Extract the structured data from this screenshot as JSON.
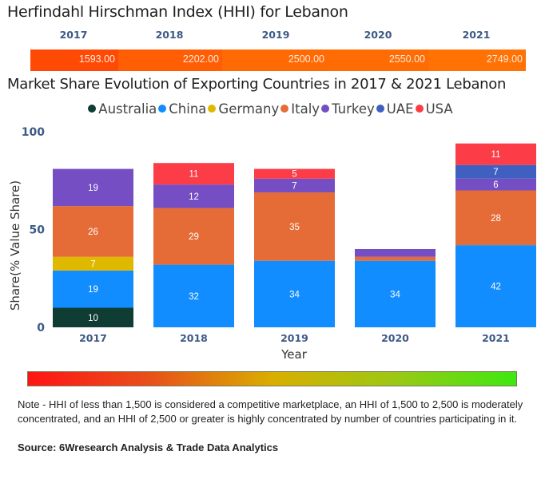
{
  "hhi": {
    "title": "Herfindahl Hirschman Index (HHI) for Lebanon",
    "years": [
      "2017",
      "2018",
      "2019",
      "2020",
      "2021"
    ],
    "values": [
      "1593.00",
      "2202.00",
      "2500.00",
      "2550.00",
      "2749.00"
    ],
    "cell_colors": [
      "#ff4a06",
      "#ff5e05",
      "#ff6a04",
      "#ff6c04",
      "#ff7203"
    ]
  },
  "chart_data": {
    "type": "bar",
    "stacked": true,
    "title": "Market Share Evolution of Exporting Countries in 2017 & 2021 Lebanon",
    "xlabel": "Year",
    "ylabel": "Share(% Value Share)",
    "ylim": [
      0,
      100
    ],
    "yticks": [
      "0",
      "50",
      "100"
    ],
    "categories": [
      "2017",
      "2018",
      "2019",
      "2020",
      "2021"
    ],
    "legend_position": "top-center",
    "series": [
      {
        "name": "Australia",
        "color": "#0f3d33",
        "values": [
          10,
          0,
          0,
          0,
          0
        ],
        "labels": [
          "10",
          "",
          "",
          "",
          ""
        ]
      },
      {
        "name": "China",
        "color": "#118dff",
        "values": [
          19,
          32,
          34,
          34,
          42
        ],
        "labels": [
          "19",
          "32",
          "34",
          "34",
          "42"
        ]
      },
      {
        "name": "Germany",
        "color": "#dfb800",
        "values": [
          7,
          0,
          0,
          0,
          0
        ],
        "labels": [
          "7",
          "",
          "",
          "",
          ""
        ]
      },
      {
        "name": "Italy",
        "color": "#e66c37",
        "values": [
          26,
          29,
          35,
          2,
          28
        ],
        "labels": [
          "26",
          "29",
          "35",
          "",
          "28"
        ]
      },
      {
        "name": "Turkey",
        "color": "#744ec2",
        "values": [
          19,
          12,
          7,
          4,
          6
        ],
        "labels": [
          "19",
          "12",
          "7",
          "",
          "6"
        ]
      },
      {
        "name": "UAE",
        "color": "#3f5fc1",
        "values": [
          0,
          0,
          0,
          0,
          7
        ],
        "labels": [
          "",
          "",
          "",
          "",
          "7"
        ]
      },
      {
        "name": "USA",
        "color": "#fc3c46",
        "values": [
          0,
          11,
          5,
          0,
          11
        ],
        "labels": [
          "",
          "11",
          "5",
          "",
          "11"
        ]
      }
    ]
  },
  "scale_bar": {
    "colors": [
      "#ff1414",
      "#3ee812"
    ]
  },
  "footer": {
    "note": "Note - HHI of less than 1,500 is considered a competitive marketplace, an HHI of 1,500 to 2,500 is moderately concentrated, and an HHI of 2,500 or greater is highly concentrated by number of countries participating in it.",
    "source": "Source: 6Wresearch Analysis & Trade Data Analytics"
  }
}
